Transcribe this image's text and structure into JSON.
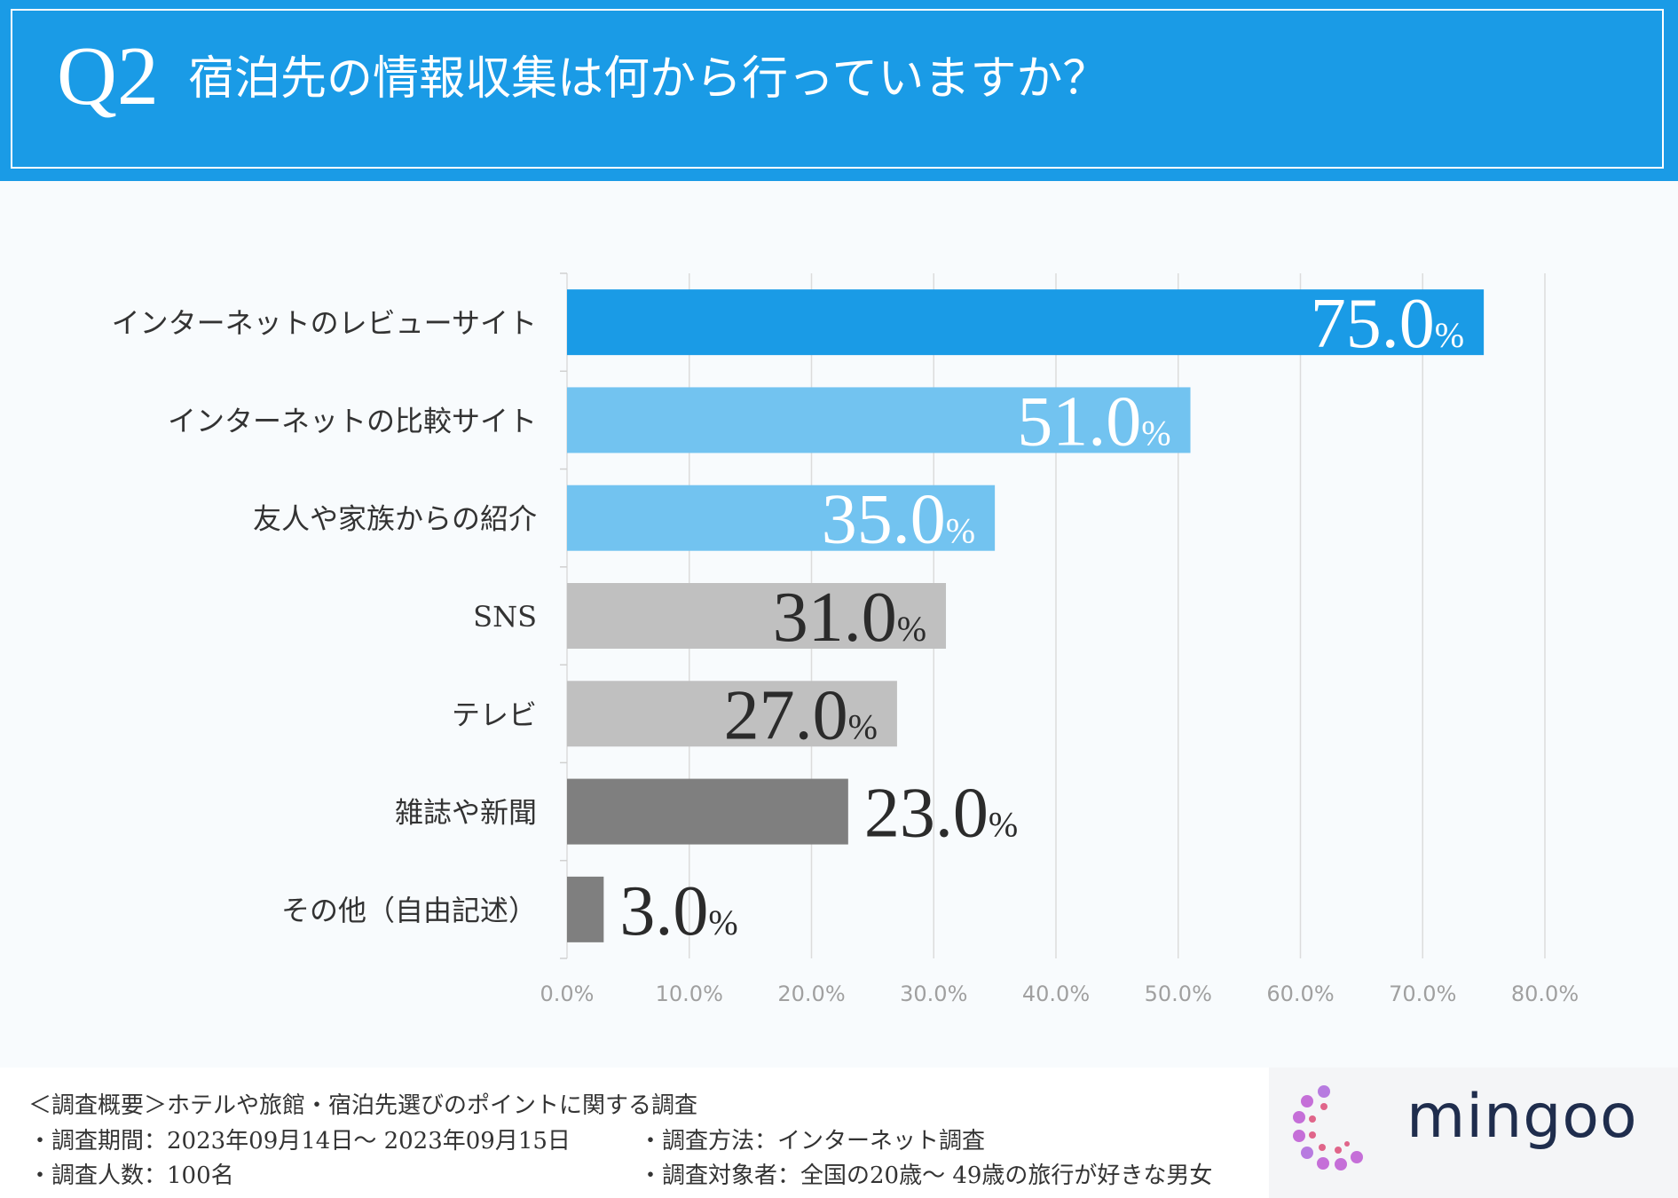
{
  "header": {
    "q_label": "Q2",
    "title": "宿泊先の情報収集は何から行っていますか？"
  },
  "chart_data": {
    "type": "bar",
    "orientation": "horizontal",
    "categories": [
      "インターネットのレビューサイト",
      "インターネットの比較サイト",
      "友人や家族からの紹介",
      "SNS",
      "テレビ",
      "雑誌や新聞",
      "その他（自由記述）"
    ],
    "values": [
      75.0,
      51.0,
      35.0,
      31.0,
      27.0,
      23.0,
      3.0
    ],
    "value_suffix": "%",
    "bar_colors": [
      "#1a9be6",
      "#72c3f0",
      "#72c3f0",
      "#c0c0c0",
      "#c0c0c0",
      "#7f7f7f",
      "#7f7f7f"
    ],
    "xlim": [
      0,
      80
    ],
    "xticks": [
      "0.0%",
      "10.0%",
      "20.0%",
      "30.0%",
      "40.0%",
      "50.0%",
      "60.0%",
      "70.0%",
      "80.0%"
    ],
    "grid": true
  },
  "footer": {
    "overview": "＜調査概要＞ホテルや旅館・宿泊先選びのポイントに関する調査",
    "period": "・調査期間：2023年09月14日～ 2023年09月15日",
    "count": "・調査人数：100名",
    "method": "・調査方法：インターネット調査",
    "target": "・調査対象者：全国の20歳～ 49歳の旅行が好きな男女"
  },
  "logo": {
    "text": "mingoo"
  }
}
